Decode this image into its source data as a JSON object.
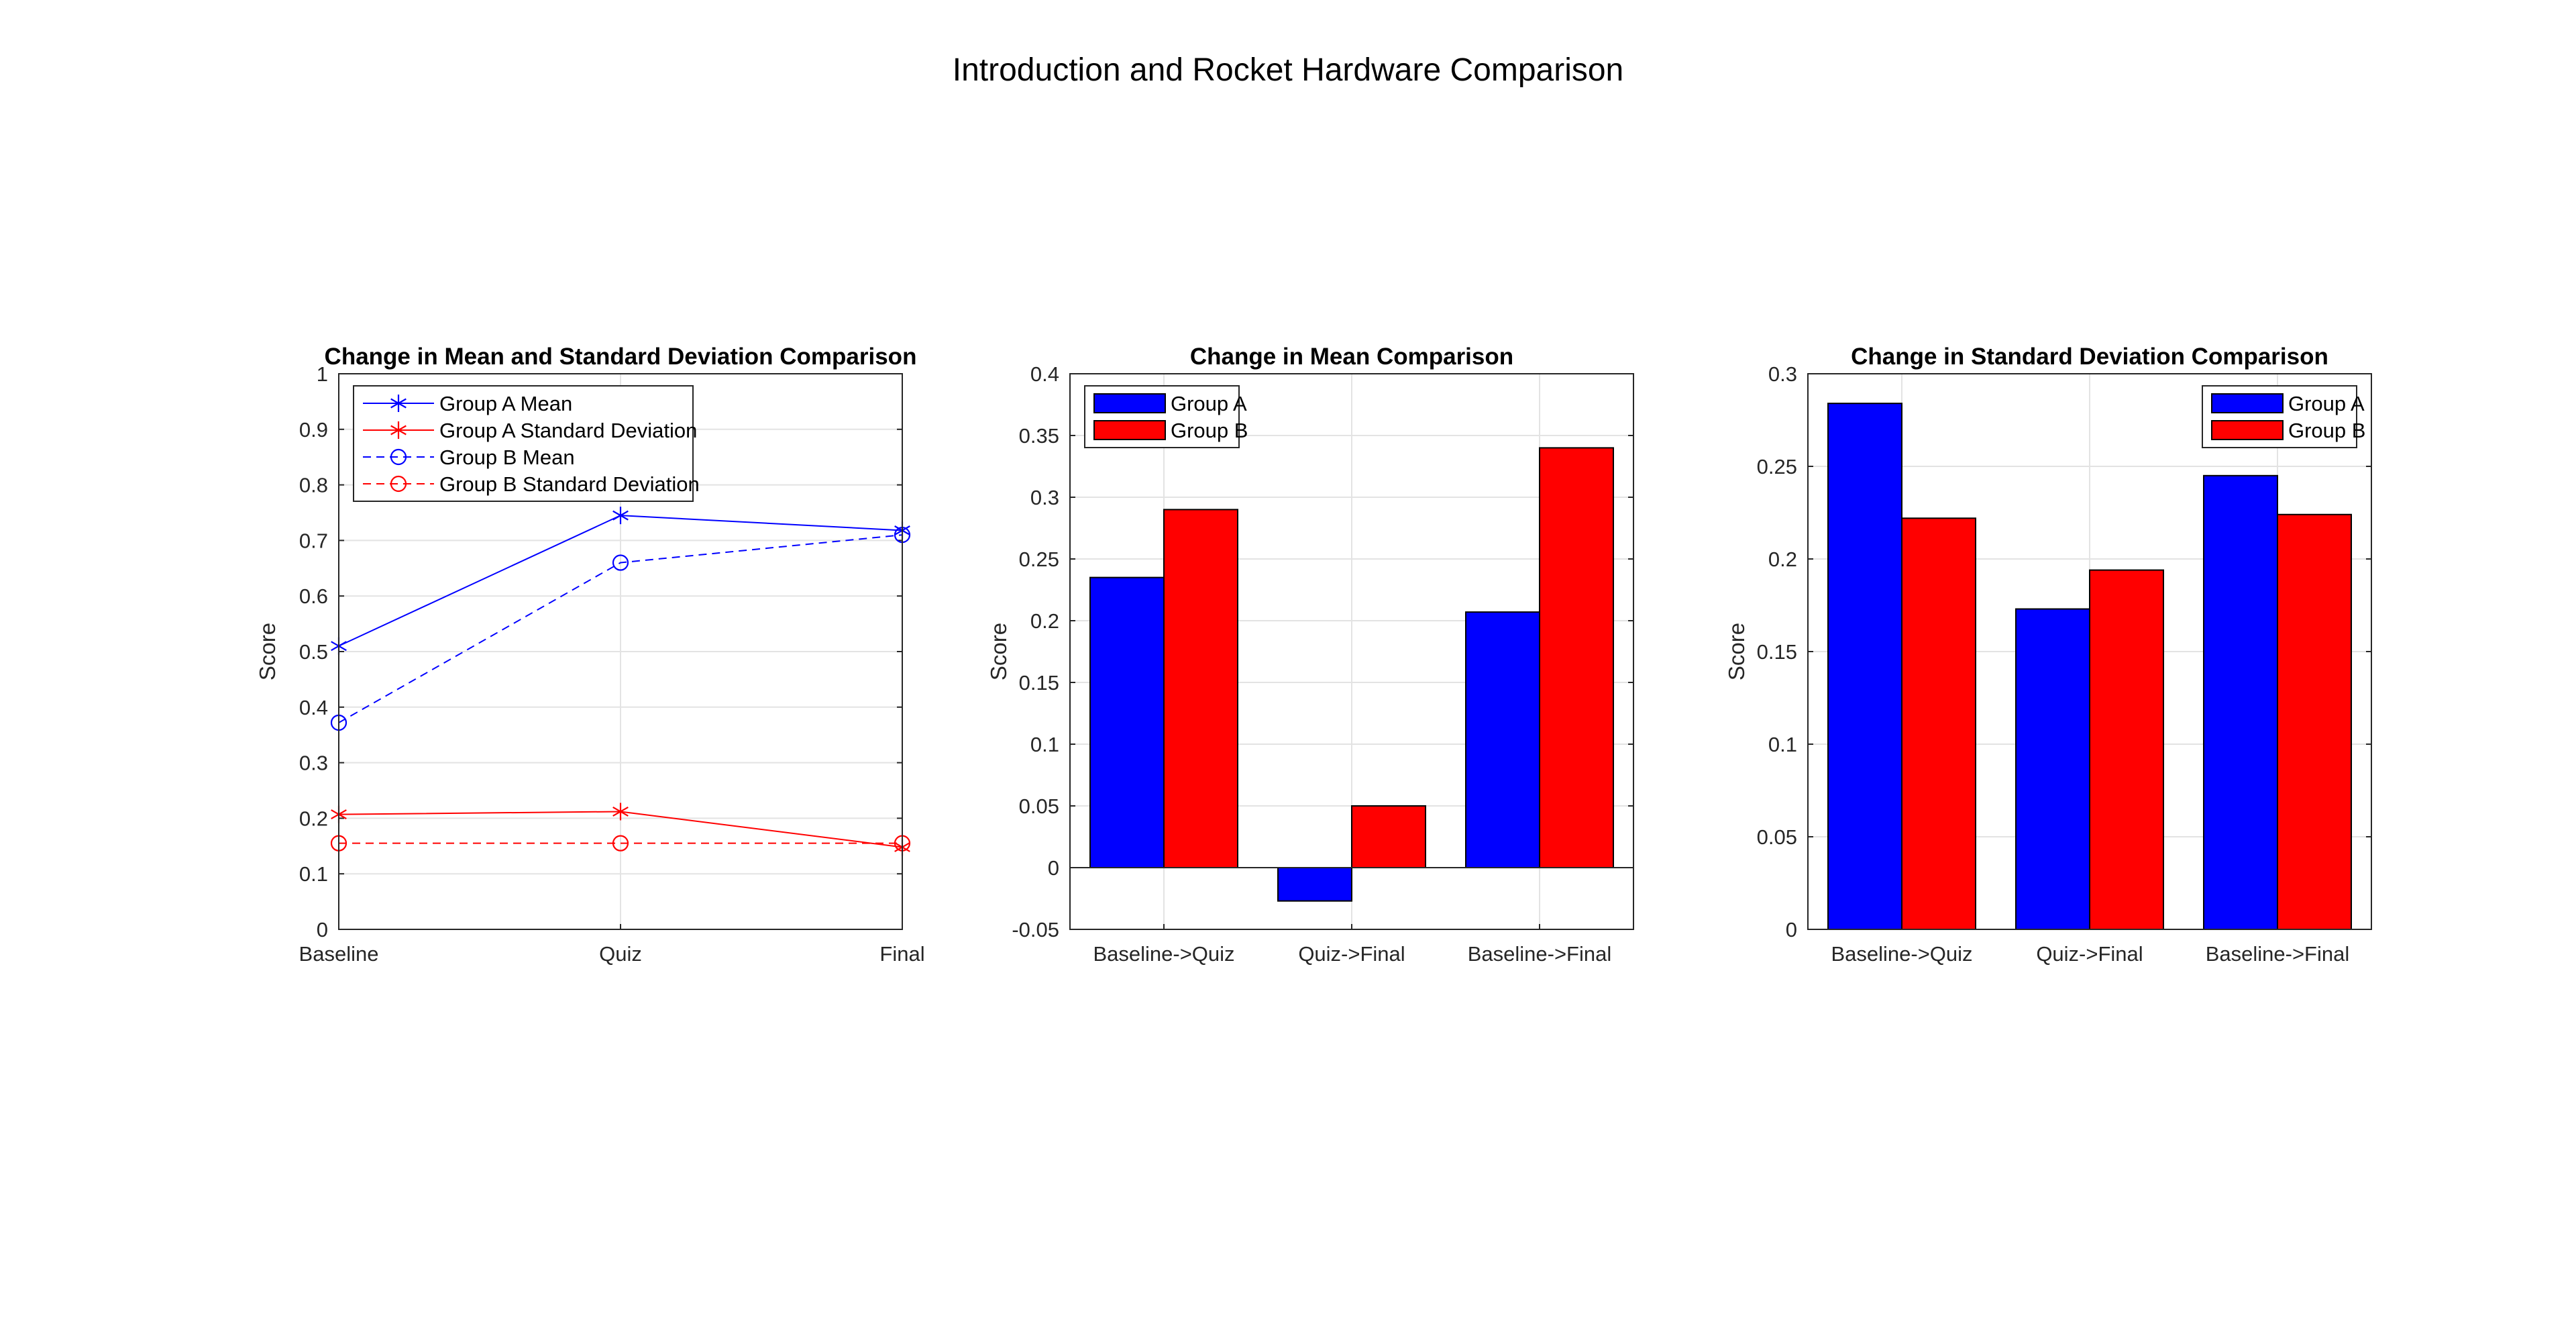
{
  "figure_title": "Introduction and Rocket Hardware Comparison",
  "chart_data": [
    {
      "type": "line",
      "title": "Change in Mean and Standard Deviation Comparison",
      "xlabel": "",
      "ylabel": "Score",
      "categories": [
        "Baseline",
        "Quiz",
        "Final"
      ],
      "ylim": [
        0,
        1
      ],
      "yticks": [
        "0",
        "0.1",
        "0.2",
        "0.3",
        "0.4",
        "0.5",
        "0.6",
        "0.7",
        "0.8",
        "0.9",
        "1"
      ],
      "grid": true,
      "legend_position": "top-left",
      "series": [
        {
          "name": "Group A Mean",
          "values": [
            0.51,
            0.745,
            0.718
          ],
          "color": "#0000ff",
          "line": "solid",
          "marker": "asterisk"
        },
        {
          "name": "Group A Standard Deviation",
          "values": [
            0.207,
            0.212,
            0.148
          ],
          "color": "#ff0000",
          "line": "solid",
          "marker": "asterisk"
        },
        {
          "name": "Group B Mean",
          "values": [
            0.372,
            0.66,
            0.71
          ],
          "color": "#0000ff",
          "line": "dashed",
          "marker": "circle"
        },
        {
          "name": "Group B Standard Deviation",
          "values": [
            0.155,
            0.155,
            0.155
          ],
          "color": "#ff0000",
          "line": "dashed",
          "marker": "circle"
        }
      ]
    },
    {
      "type": "bar",
      "title": "Change in Mean Comparison",
      "xlabel": "",
      "ylabel": "Score",
      "categories": [
        "Baseline->Quiz",
        "Quiz->Final",
        "Baseline->Final"
      ],
      "ylim": [
        -0.05,
        0.4
      ],
      "yticks": [
        "-0.05",
        "0",
        "0.05",
        "0.1",
        "0.15",
        "0.2",
        "0.25",
        "0.3",
        "0.35",
        "0.4"
      ],
      "grid": true,
      "legend_position": "top-left",
      "series": [
        {
          "name": "Group A",
          "values": [
            0.235,
            -0.027,
            0.207
          ],
          "color": "#0000ff"
        },
        {
          "name": "Group B",
          "values": [
            0.29,
            0.05,
            0.34
          ],
          "color": "#ff0000"
        }
      ]
    },
    {
      "type": "bar",
      "title": "Change in Standard Deviation Comparison",
      "xlabel": "",
      "ylabel": "Score",
      "categories": [
        "Baseline->Quiz",
        "Quiz->Final",
        "Baseline->Final"
      ],
      "ylim": [
        0,
        0.3
      ],
      "yticks": [
        "0",
        "0.05",
        "0.1",
        "0.15",
        "0.2",
        "0.25",
        "0.3"
      ],
      "grid": true,
      "legend_position": "top-right",
      "series": [
        {
          "name": "Group A",
          "values": [
            0.284,
            0.173,
            0.245
          ],
          "color": "#0000ff"
        },
        {
          "name": "Group B",
          "values": [
            0.222,
            0.194,
            0.224
          ],
          "color": "#ff0000"
        }
      ]
    }
  ]
}
